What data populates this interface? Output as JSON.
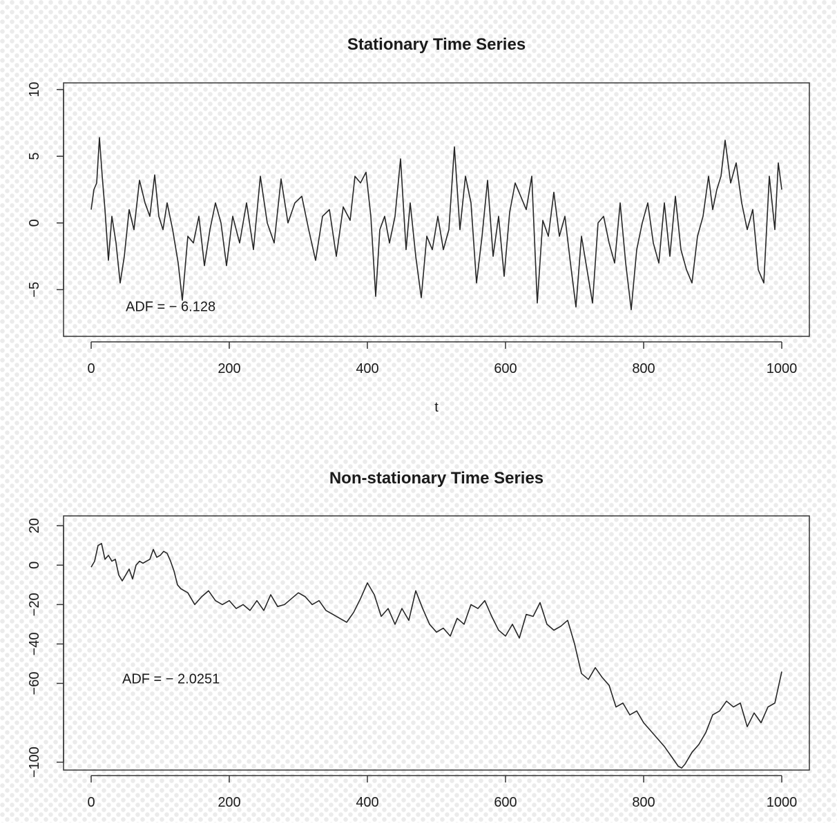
{
  "chart_data": [
    {
      "type": "line",
      "title": "Stationary Time Series",
      "xlabel": "t",
      "ylabel": "",
      "xlim": [
        0,
        1000
      ],
      "ylim": [
        -8.5,
        10.5
      ],
      "xticks": [
        0,
        200,
        400,
        600,
        800,
        1000
      ],
      "yticks": [
        -5,
        0,
        5,
        10
      ],
      "grid": false,
      "annotation": "ADF = -6.128",
      "annotation_pos": [
        50,
        -6.6
      ],
      "series": [
        {
          "x": [
            0,
            4,
            8,
            12,
            16,
            20,
            25,
            30,
            36,
            42,
            48,
            55,
            62,
            70,
            78,
            85,
            92,
            98,
            104,
            110,
            118,
            126,
            132,
            140,
            148,
            156,
            164,
            172,
            180,
            188,
            196,
            205,
            215,
            225,
            235,
            245,
            255,
            265,
            275,
            285,
            295,
            305,
            315,
            325,
            335,
            345,
            355,
            365,
            375,
            382,
            390,
            398,
            405,
            412,
            418,
            425,
            432,
            440,
            448,
            456,
            462,
            470,
            478,
            486,
            494,
            502,
            510,
            518,
            526,
            534,
            542,
            550,
            558,
            566,
            574,
            582,
            590,
            598,
            606,
            614,
            622,
            630,
            638,
            646,
            654,
            662,
            670,
            678,
            686,
            694,
            702,
            710,
            718,
            726,
            734,
            742,
            750,
            758,
            766,
            774,
            782,
            790,
            798,
            806,
            814,
            822,
            830,
            838,
            846,
            854,
            862,
            870,
            878,
            886,
            894,
            900,
            906,
            912,
            918,
            926,
            934,
            942,
            950,
            958,
            966,
            974,
            982,
            990,
            995,
            1000
          ],
          "y": [
            1,
            2.5,
            3,
            6.4,
            3.5,
            1,
            -2.8,
            0.5,
            -1.5,
            -4.5,
            -2.5,
            1,
            -0.5,
            3.2,
            1.5,
            0.5,
            3.6,
            0.5,
            -0.5,
            1.5,
            -0.5,
            -3,
            -5.8,
            -1,
            -1.5,
            0.5,
            -3.2,
            -0.5,
            1.5,
            0,
            -3.2,
            0.5,
            -1.5,
            1.5,
            -2,
            3.5,
            0,
            -1.5,
            3.3,
            0,
            1.5,
            2,
            -0.5,
            -2.8,
            0.5,
            1,
            -2.5,
            1.2,
            0.2,
            3.5,
            3,
            3.8,
            0.5,
            -5.5,
            -0.5,
            0.5,
            -1.5,
            0.5,
            4.8,
            -2,
            1.5,
            -2.5,
            -5.6,
            -1,
            -2,
            0.5,
            -2,
            -0.5,
            5.7,
            -0.5,
            3.5,
            1.5,
            -4.5,
            -1,
            3.2,
            -2.5,
            0.5,
            -4,
            0.8,
            3,
            2,
            1,
            3.5,
            -6,
            0.2,
            -1,
            2.3,
            -1,
            0.5,
            -3,
            -6.3,
            -1,
            -3.5,
            -6,
            0,
            0.5,
            -1.5,
            -3,
            1.5,
            -3,
            -6.5,
            -2,
            0,
            1.5,
            -1.5,
            -3,
            1.5,
            -2.5,
            2,
            -2,
            -3.5,
            -4.5,
            -1,
            0.5,
            3.5,
            1,
            2.5,
            3.5,
            6.2,
            3,
            4.5,
            1.5,
            -0.5,
            1,
            -3.5,
            -4.5,
            3.5,
            -0.5,
            4.5,
            2.5
          ],
          "color": "#262626"
        }
      ]
    },
    {
      "type": "line",
      "title": "Non-stationary Time Series",
      "xlabel": "",
      "ylabel": "",
      "xlim": [
        0,
        1000
      ],
      "ylim": [
        -104,
        25
      ],
      "xticks": [
        0,
        200,
        400,
        600,
        800,
        1000
      ],
      "yticks": [
        -100,
        -60,
        -40,
        -20,
        0,
        20
      ],
      "grid": false,
      "annotation": "ADF = -2.0251",
      "annotation_pos": [
        45,
        -60
      ],
      "series": [
        {
          "x": [
            0,
            5,
            10,
            15,
            20,
            25,
            30,
            35,
            40,
            45,
            50,
            55,
            60,
            65,
            70,
            75,
            80,
            85,
            90,
            95,
            100,
            105,
            110,
            115,
            120,
            125,
            130,
            140,
            150,
            160,
            170,
            180,
            190,
            200,
            210,
            220,
            230,
            240,
            250,
            260,
            270,
            280,
            290,
            300,
            310,
            320,
            330,
            340,
            350,
            360,
            370,
            380,
            390,
            400,
            410,
            420,
            430,
            440,
            450,
            460,
            470,
            480,
            490,
            500,
            510,
            520,
            530,
            540,
            550,
            560,
            570,
            580,
            590,
            600,
            610,
            620,
            630,
            640,
            650,
            660,
            670,
            680,
            690,
            700,
            710,
            720,
            730,
            740,
            750,
            760,
            770,
            780,
            790,
            800,
            810,
            820,
            830,
            840,
            850,
            855,
            860,
            870,
            880,
            890,
            900,
            910,
            920,
            930,
            940,
            950,
            960,
            970,
            980,
            990,
            1000
          ],
          "y": [
            -1,
            2,
            10,
            11,
            3,
            5,
            2,
            3,
            -5,
            -8,
            -5,
            -2,
            -7,
            0,
            2,
            1,
            2,
            3,
            8,
            4,
            5,
            7,
            6,
            2,
            -3,
            -10,
            -12,
            -14,
            -20,
            -16,
            -13,
            -18,
            -20,
            -18,
            -22,
            -20,
            -23,
            -18,
            -23,
            -15,
            -21,
            -20,
            -17,
            -14,
            -16,
            -20,
            -18,
            -23,
            -25,
            -27,
            -29,
            -24,
            -17,
            -9,
            -15,
            -26,
            -22,
            -30,
            -22,
            -28,
            -13,
            -22,
            -30,
            -34,
            -32,
            -36,
            -27,
            -30,
            -20,
            -22,
            -18,
            -26,
            -33,
            -36,
            -30,
            -37,
            -25,
            -26,
            -19,
            -30,
            -33,
            -31,
            -28,
            -40,
            -55,
            -58,
            -52,
            -57,
            -61,
            -72,
            -70,
            -76,
            -74,
            -80,
            -84,
            -88,
            -92,
            -97,
            -102,
            -103,
            -101,
            -95,
            -91,
            -85,
            -76,
            -74,
            -69,
            -72,
            -70,
            -82,
            -75,
            -80,
            -72,
            -70,
            -54
          ],
          "color": "#262626"
        }
      ]
    }
  ]
}
